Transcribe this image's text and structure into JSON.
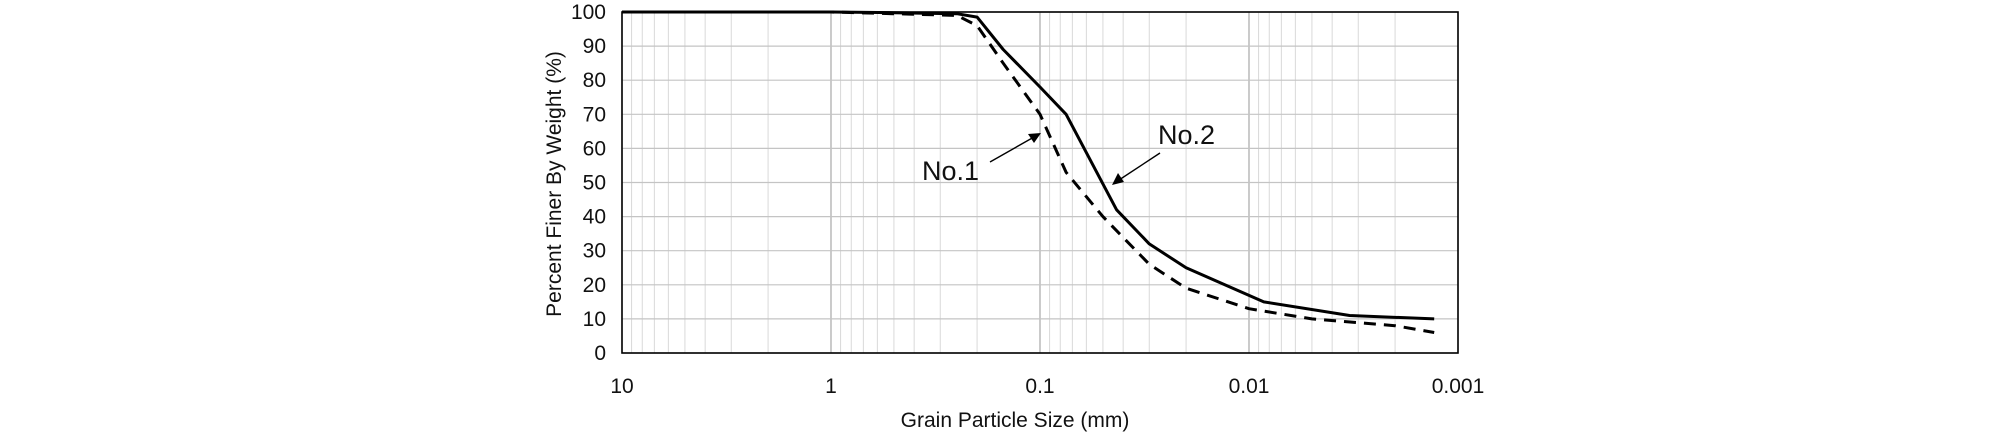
{
  "chart_data": {
    "type": "line",
    "title": "",
    "xlabel": "Grain Particle Size (mm)",
    "ylabel": "Percent Finer By Weight (%)",
    "x_scale": "log",
    "x_reversed": true,
    "xlim": [
      10,
      0.001
    ],
    "ylim": [
      0,
      100
    ],
    "x_ticks": [
      {
        "value": 10,
        "label": "10"
      },
      {
        "value": 1,
        "label": "1"
      },
      {
        "value": 0.1,
        "label": "0.1"
      },
      {
        "value": 0.01,
        "label": "0.01"
      },
      {
        "value": 0.001,
        "label": "0.001"
      }
    ],
    "y_ticks": [
      0,
      10,
      20,
      30,
      40,
      50,
      60,
      70,
      80,
      90,
      100
    ],
    "grid": true,
    "legend": "none",
    "series": [
      {
        "name": "No.1",
        "style": "dashed",
        "color": "#000000",
        "x": [
          10,
          2,
          1,
          0.5,
          0.25,
          0.2,
          0.15,
          0.1,
          0.075,
          0.05,
          0.03,
          0.02,
          0.01,
          0.005,
          0.002,
          0.0013
        ],
        "y": [
          100,
          100,
          100,
          99.5,
          99,
          96,
          85,
          70,
          53,
          40,
          26,
          19,
          13,
          10,
          8,
          6
        ]
      },
      {
        "name": "No.2",
        "style": "solid",
        "color": "#000000",
        "x": [
          10,
          2,
          1,
          0.5,
          0.25,
          0.2,
          0.15,
          0.1,
          0.075,
          0.043,
          0.03,
          0.02,
          0.0085,
          0.0033,
          0.0013
        ],
        "y": [
          100,
          100,
          100,
          99.8,
          99.5,
          98.5,
          89,
          78,
          70,
          42,
          32,
          25,
          15,
          11,
          10
        ]
      }
    ],
    "annotations": [
      {
        "text": "No.1",
        "arrow_to": {
          "x": 0.1,
          "y": 63
        }
      },
      {
        "text": "No.2",
        "arrow_to": {
          "x": 0.065,
          "y": 48
        }
      }
    ]
  }
}
